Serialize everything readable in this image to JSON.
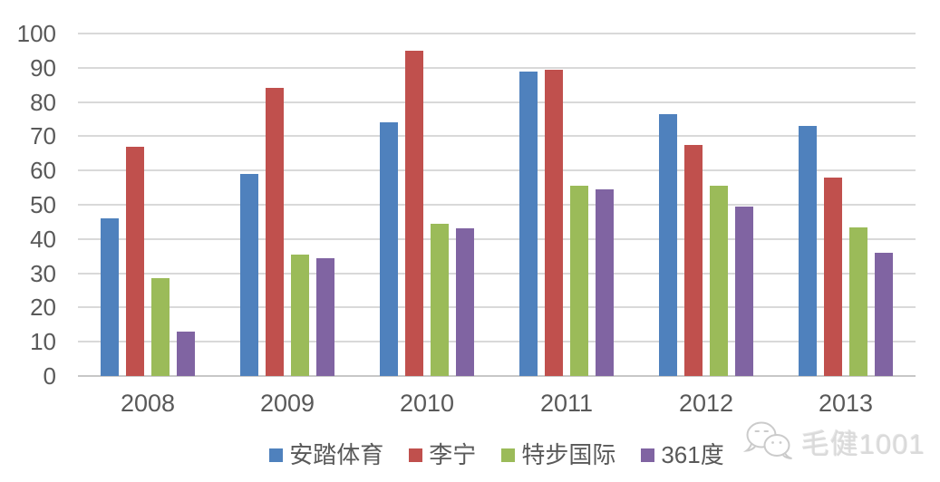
{
  "chart_data": {
    "type": "bar",
    "title": "",
    "xlabel": "",
    "ylabel": "",
    "categories": [
      "2008",
      "2009",
      "2010",
      "2011",
      "2012",
      "2013"
    ],
    "series": [
      {
        "key": "anta",
        "name": "安踏体育",
        "color": "#4F81BD",
        "values": [
          46,
          59,
          74,
          89,
          76.5,
          73
        ]
      },
      {
        "key": "lining",
        "name": "李宁",
        "color": "#C0504D",
        "values": [
          67,
          84,
          95,
          89.5,
          67.5,
          58
        ]
      },
      {
        "key": "xtep",
        "name": "特步国际",
        "color": "#9BBB59",
        "values": [
          28.5,
          35.5,
          44.5,
          55.5,
          55.5,
          43.5
        ]
      },
      {
        "key": "361du",
        "name": "361度",
        "color": "#8064A2",
        "values": [
          13,
          34.5,
          43,
          54.5,
          49.5,
          36
        ]
      }
    ],
    "ylim": [
      0,
      100
    ],
    "yticks": [
      0,
      10,
      20,
      30,
      40,
      50,
      60,
      70,
      80,
      90,
      100
    ],
    "grid": true,
    "legend_position": "bottom"
  },
  "colors": {
    "gridline": "#d9d9d9",
    "axis_text": "#595959",
    "watermark_text": "#d9d9d9",
    "watermark_icon": "#c9c9c9"
  },
  "watermark": {
    "text": "毛健1001",
    "icon": "wechat-icon"
  }
}
